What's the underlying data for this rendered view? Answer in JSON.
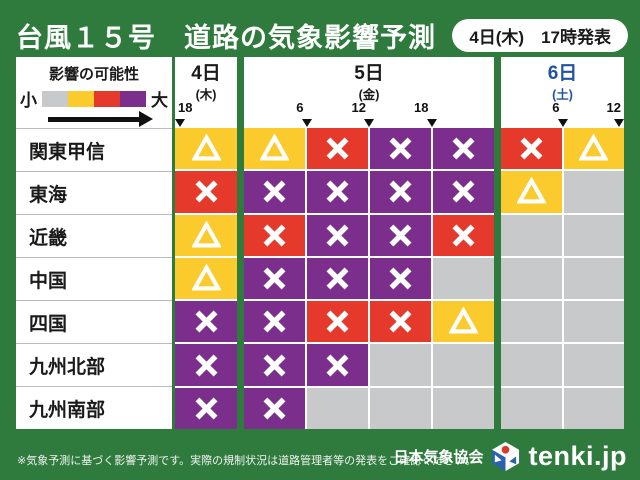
{
  "header": {
    "title": "台風１５号　道路の気象影響予測",
    "issued_badge": "4日(木)　17時発表"
  },
  "legend": {
    "title": "影響の可能性",
    "low_label": "小",
    "high_label": "大",
    "scale_colors": [
      "#c8c9ca",
      "#fbcb2d",
      "#e4392b",
      "#7b2e8c"
    ]
  },
  "days": [
    {
      "label": "4日",
      "weekday": "(木)",
      "text_color": "#1a1a1a",
      "cell_count": 1,
      "time_ticks": [
        {
          "label": "18",
          "boundary": 0
        }
      ]
    },
    {
      "label": "5日",
      "weekday": "(金)",
      "text_color": "#1a1a1a",
      "cell_count": 4,
      "time_ticks": [
        {
          "label": "6",
          "boundary": 1
        },
        {
          "label": "12",
          "boundary": 2
        },
        {
          "label": "18",
          "boundary": 3
        }
      ]
    },
    {
      "label": "6日",
      "weekday": "(土)",
      "text_color": "#2153a1",
      "cell_count": 2,
      "time_ticks": [
        {
          "label": "6",
          "boundary": 1
        },
        {
          "label": "12",
          "boundary": 2
        }
      ]
    }
  ],
  "regions": [
    {
      "name": "関東甲信",
      "cells": [
        "yellow/triangle",
        "yellow/triangle",
        "red/x",
        "purple/x",
        "purple/x",
        "red/x",
        "yellow/triangle"
      ]
    },
    {
      "name": "東海",
      "cells": [
        "red/x",
        "purple/x",
        "purple/x",
        "purple/x",
        "purple/x",
        "yellow/triangle",
        "gray/none"
      ]
    },
    {
      "name": "近畿",
      "cells": [
        "yellow/triangle",
        "red/x",
        "purple/x",
        "purple/x",
        "red/x",
        "gray/none",
        "gray/none"
      ]
    },
    {
      "name": "中国",
      "cells": [
        "yellow/triangle",
        "purple/x",
        "purple/x",
        "purple/x",
        "gray/none",
        "gray/none",
        "gray/none"
      ]
    },
    {
      "name": "四国",
      "cells": [
        "purple/x",
        "purple/x",
        "red/x",
        "red/x",
        "yellow/triangle",
        "gray/none",
        "gray/none"
      ]
    },
    {
      "name": "九州北部",
      "cells": [
        "purple/x",
        "purple/x",
        "purple/x",
        "gray/none",
        "gray/none",
        "gray/none",
        "gray/none"
      ]
    },
    {
      "name": "九州南部",
      "cells": [
        "purple/x",
        "purple/x",
        "gray/none",
        "gray/none",
        "gray/none",
        "gray/none",
        "gray/none"
      ]
    }
  ],
  "footer": {
    "note": "※気象予測に基づく影響予測です。実際の規制状況は道路管理者等の発表をご確認ください。",
    "org": "日本気象協会",
    "brand": "tenki.jp"
  },
  "colors": {
    "background": "#2e7b3d",
    "yellow": "#fbcb2d",
    "red": "#e4392b",
    "purple": "#7b2e8c",
    "gray": "#c8c9ca",
    "saturday_blue": "#2153a1",
    "symbol_white": "#ffffff"
  },
  "chart_data": {
    "type": "heatmap",
    "title": "台風１５号　道路の気象影響予測",
    "issued": "4日(木)　17時発表",
    "legend": {
      "label": "影響の可能性",
      "scale_low_to_high": [
        "gray",
        "yellow △",
        "red ✕",
        "purple ✕"
      ],
      "low": "小",
      "high": "大"
    },
    "row_labels": [
      "関東甲信",
      "東海",
      "近畿",
      "中国",
      "四国",
      "九州北部",
      "九州南部"
    ],
    "col_labels": [
      "4日(木) 18時〜",
      "5日(金) 〜6時",
      "5日(金) 6〜12時",
      "5日(金) 12〜18時",
      "5日(金) 18時〜",
      "6日(土) 〜6時",
      "6日(土) 6〜12時"
    ],
    "values": [
      [
        "yellow △",
        "yellow △",
        "red ✕",
        "purple ✕",
        "purple ✕",
        "red ✕",
        "yellow △"
      ],
      [
        "red ✕",
        "purple ✕",
        "purple ✕",
        "purple ✕",
        "purple ✕",
        "yellow △",
        "gray"
      ],
      [
        "yellow △",
        "red ✕",
        "purple ✕",
        "purple ✕",
        "red ✕",
        "gray",
        "gray"
      ],
      [
        "yellow △",
        "purple ✕",
        "purple ✕",
        "purple ✕",
        "gray",
        "gray",
        "gray"
      ],
      [
        "purple ✕",
        "purple ✕",
        "red ✕",
        "red ✕",
        "yellow △",
        "gray",
        "gray"
      ],
      [
        "purple ✕",
        "purple ✕",
        "purple ✕",
        "gray",
        "gray",
        "gray",
        "gray"
      ],
      [
        "purple ✕",
        "purple ✕",
        "gray",
        "gray",
        "gray",
        "gray",
        "gray"
      ]
    ]
  }
}
